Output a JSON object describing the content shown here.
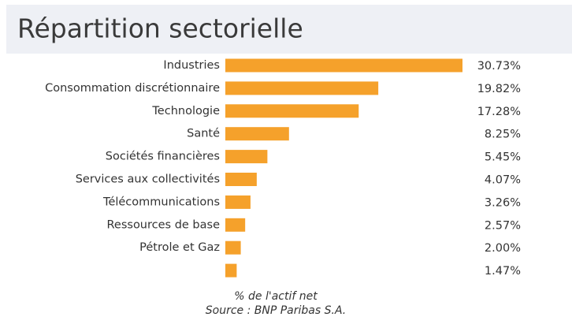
{
  "chart_data": {
    "type": "bar",
    "orientation": "horizontal",
    "title": "Répartition sectorielle",
    "categories": [
      "Industries",
      "Consommation discrétionnaire",
      "Technologie",
      "Santé",
      "Sociétés financières",
      "Services aux collectivités",
      "Télécommunications",
      "Ressources de base",
      "Pétrole et Gaz",
      null
    ],
    "values": [
      30.73,
      19.82,
      17.28,
      8.25,
      5.45,
      4.07,
      3.26,
      2.57,
      2.0,
      1.47
    ],
    "value_labels": [
      "30.73%",
      "19.82%",
      "17.28%",
      "8.25%",
      "5.45%",
      "4.07%",
      "3.26%",
      "2.57%",
      "2.00%",
      "1.47%"
    ],
    "color": "#f5a12b",
    "x_label": "% de l'actif net",
    "source": "Source : BNP Paribas S.A."
  }
}
